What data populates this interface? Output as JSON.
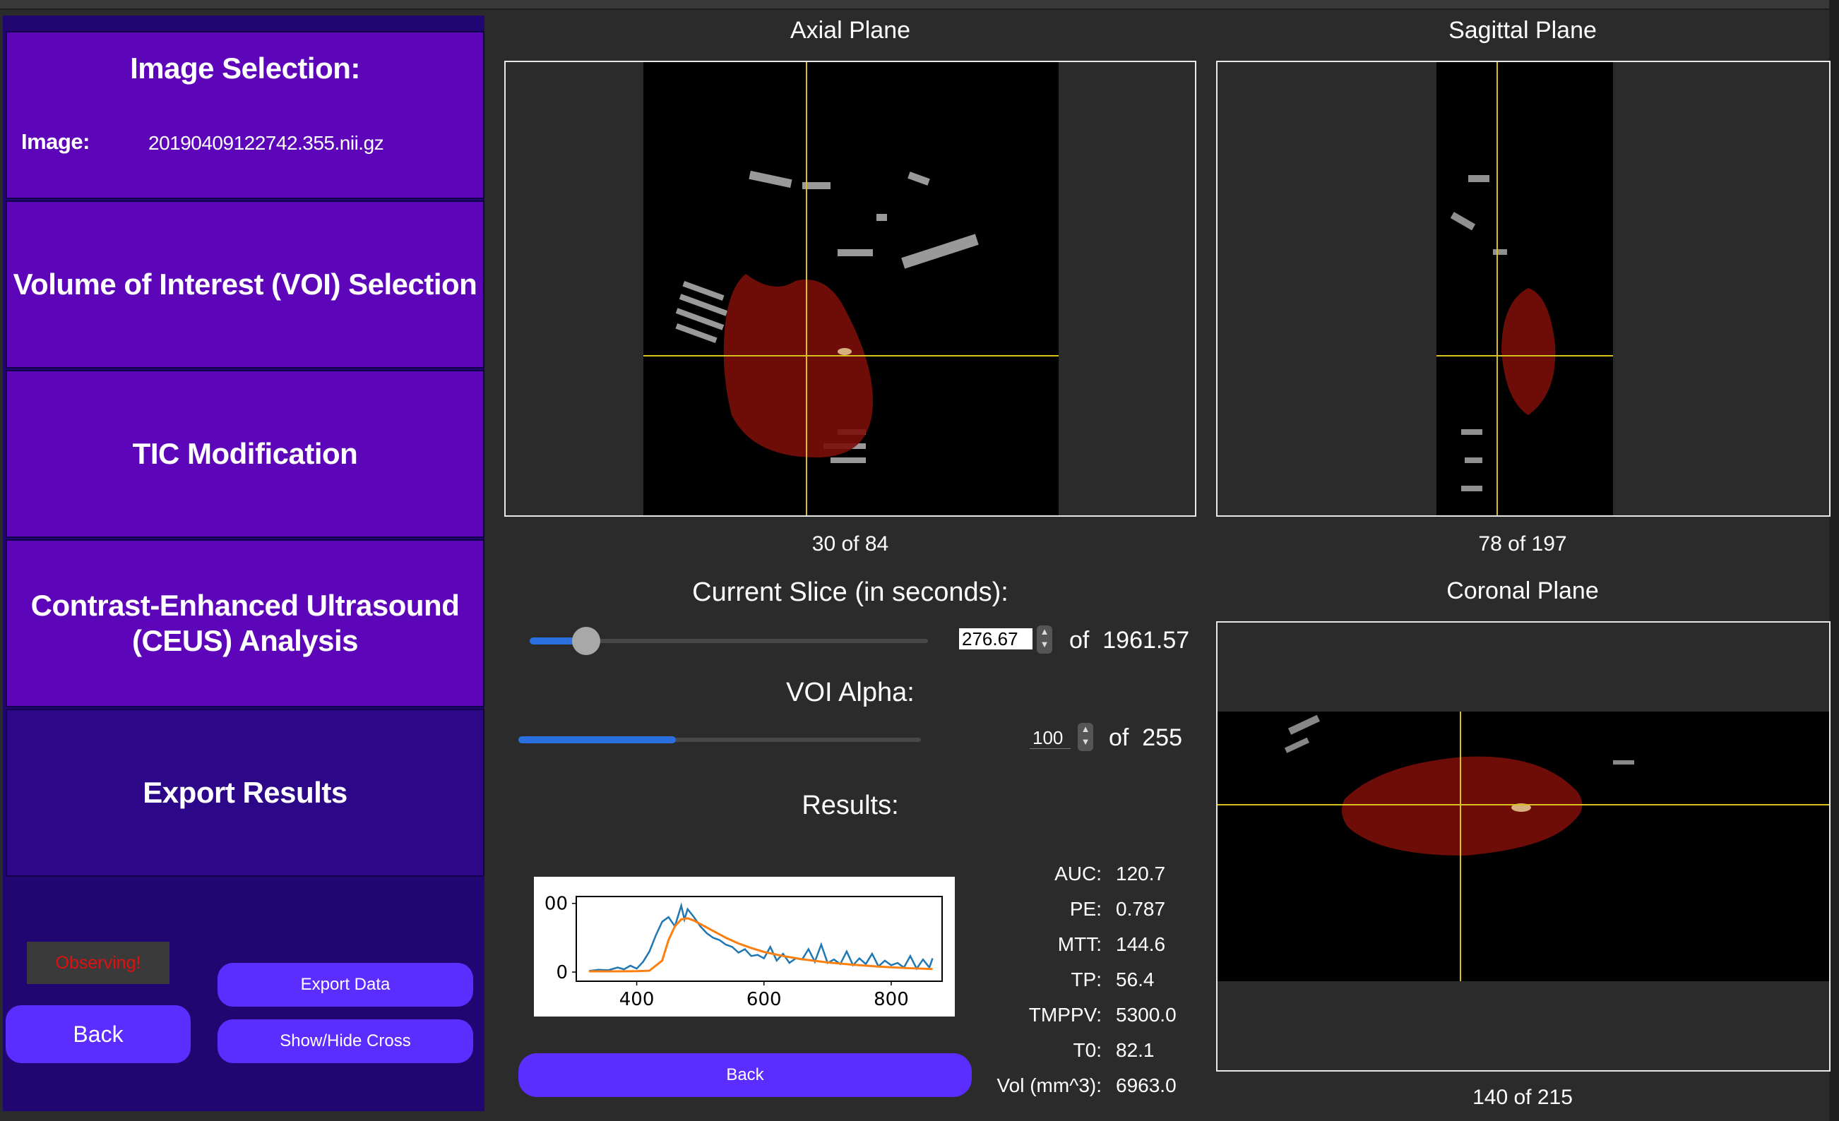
{
  "sidebar": {
    "image_selection_title": "Image Selection:",
    "image_label": "Image:",
    "image_value": "20190409122742.355.nii.gz",
    "voi_selection": "Volume of Interest (VOI) Selection",
    "tic_modification": "TIC Modification",
    "ceus_analysis": "Contrast-Enhanced Ultrasound (CEUS) Analysis",
    "export_results": "Export Results",
    "observing": "Observing!",
    "back": "Back",
    "export_data": "Export Data",
    "show_hide_cross": "Show/Hide Cross"
  },
  "axial": {
    "title": "Axial Plane",
    "slice": "30",
    "of": "of",
    "total": "84"
  },
  "sagittal": {
    "title": "Sagittal Plane",
    "slice": "78",
    "of": "of",
    "total": "197"
  },
  "coronal": {
    "title": "Coronal Plane",
    "slice": "140",
    "of": "of",
    "total": "215"
  },
  "current_slice": {
    "title": "Current Slice (in seconds):",
    "value": "276.67",
    "of": "of",
    "max": "1961.57",
    "fraction": 0.141
  },
  "voi_alpha": {
    "title": "VOI Alpha:",
    "value": "100",
    "of": "of",
    "max": "255",
    "fraction": 0.392
  },
  "results": {
    "title": "Results:",
    "metrics": [
      {
        "label": "AUC:",
        "value": "120.7"
      },
      {
        "label": "PE:",
        "value": "0.787"
      },
      {
        "label": "MTT:",
        "value": "144.6"
      },
      {
        "label": "TP:",
        "value": "56.4"
      },
      {
        "label": "TMPPV:",
        "value": "5300.0"
      },
      {
        "label": "T0:",
        "value": "82.1"
      },
      {
        "label": "Vol (mm^3):",
        "value": "6963.0"
      }
    ],
    "back": "Back"
  },
  "chart_data": {
    "type": "line",
    "title": "",
    "xlabel": "",
    "ylabel": "",
    "xlim": [
      305,
      880
    ],
    "ylim": [
      -40,
      330
    ],
    "x_ticks": [
      "400",
      "600",
      "800"
    ],
    "y_ticks": [
      "0",
      "00"
    ],
    "series": [
      {
        "color": "#1f77b4",
        "x": [
          325,
          340,
          355,
          370,
          380,
          390,
          400,
          410,
          420,
          430,
          440,
          450,
          460,
          470,
          475,
          480,
          490,
          500,
          510,
          520,
          530,
          540,
          550,
          560,
          570,
          580,
          590,
          600,
          610,
          620,
          630,
          640,
          650,
          660,
          670,
          680,
          690,
          700,
          710,
          720,
          730,
          740,
          750,
          760,
          770,
          780,
          790,
          800,
          810,
          820,
          830,
          840,
          850,
          860,
          865
        ],
        "y": [
          5,
          10,
          8,
          20,
          12,
          28,
          15,
          45,
          90,
          160,
          220,
          240,
          200,
          290,
          230,
          275,
          240,
          200,
          170,
          150,
          140,
          120,
          110,
          85,
          100,
          70,
          75,
          60,
          110,
          50,
          80,
          40,
          60,
          55,
          100,
          45,
          120,
          40,
          55,
          35,
          90,
          30,
          60,
          35,
          80,
          25,
          50,
          30,
          40,
          20,
          70,
          15,
          55,
          20,
          60
        ]
      },
      {
        "color": "#ff7f0e",
        "x": [
          325,
          360,
          400,
          420,
          440,
          450,
          460,
          470,
          480,
          490,
          500,
          520,
          540,
          560,
          580,
          600,
          630,
          660,
          700,
          740,
          780,
          820,
          865
        ],
        "y": [
          3,
          3,
          4,
          6,
          50,
          140,
          200,
          230,
          235,
          225,
          210,
          180,
          150,
          125,
          105,
          88,
          70,
          56,
          42,
          32,
          24,
          18,
          13
        ]
      }
    ]
  },
  "colors": {
    "sidebar_section": "#5d05b8",
    "sidebar_section_active": "#2c0787",
    "sidebar_bg": "#1f0670",
    "button": "#5b2dff",
    "crosshair": "#d8c020",
    "voi_overlay": "#7a0e08",
    "observing_text": "#e01010"
  }
}
